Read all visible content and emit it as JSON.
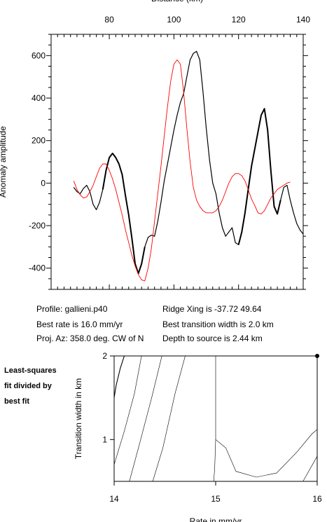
{
  "chart_data": [
    {
      "type": "line",
      "xlabel": "Distance (km)",
      "ylabel": "Anomaly amplitude",
      "xlim": [
        62,
        140
      ],
      "ylim": [
        -500,
        700
      ],
      "x_ticks": [
        80,
        100,
        120,
        140
      ],
      "y_ticks": [
        600,
        400,
        200,
        0,
        -200,
        -400
      ],
      "series": [
        {
          "color": "#000000",
          "style": "observed profile (black; thicker where data are densest)",
          "x": [
            69,
            70,
            71,
            72,
            73,
            74,
            75,
            76,
            77,
            78,
            79,
            80,
            81,
            82,
            83,
            84,
            85,
            86,
            87,
            88,
            89,
            90,
            91,
            92,
            93,
            94,
            95,
            96,
            97,
            98,
            99,
            100,
            101,
            102,
            103,
            104,
            105,
            106,
            107,
            108,
            109,
            110,
            111,
            112,
            113,
            114,
            115,
            116,
            117,
            118,
            119,
            120,
            121,
            122,
            123,
            124,
            125,
            126,
            127,
            128,
            129,
            130,
            131,
            132,
            133,
            134,
            135,
            136,
            137,
            138,
            139,
            140
          ],
          "y": [
            -20,
            -40,
            -50,
            -25,
            -10,
            -40,
            -100,
            -125,
            -90,
            -30,
            60,
            120,
            140,
            120,
            90,
            40,
            -60,
            -150,
            -260,
            -380,
            -425,
            -380,
            -300,
            -255,
            -245,
            -250,
            -180,
            -90,
            10,
            90,
            170,
            250,
            320,
            380,
            420,
            500,
            580,
            610,
            620,
            580,
            430,
            260,
            110,
            0,
            -50,
            -140,
            -210,
            -250,
            -230,
            -210,
            -280,
            -290,
            -230,
            -140,
            -30,
            80,
            160,
            240,
            320,
            350,
            250,
            60,
            -110,
            -145,
            -80,
            -20,
            -10,
            -80,
            -140,
            -190,
            -220,
            -240
          ]
        },
        {
          "color": "#ff0000",
          "style": "model profile (red)",
          "x": [
            69,
            70,
            71,
            72,
            73,
            74,
            75,
            76,
            77,
            78,
            79,
            80,
            81,
            82,
            83,
            84,
            85,
            86,
            87,
            88,
            89,
            90,
            91,
            92,
            93,
            94,
            95,
            96,
            97,
            98,
            99,
            100,
            101,
            102,
            103,
            104,
            105,
            106,
            107,
            108,
            109,
            110,
            111,
            112,
            113,
            114,
            115,
            116,
            117,
            118,
            119,
            120,
            121,
            122,
            123,
            124,
            125,
            126,
            127,
            128,
            129,
            130,
            131,
            132,
            133,
            134,
            135,
            136
          ],
          "y": [
            10,
            -30,
            -55,
            -70,
            -65,
            -40,
            -10,
            30,
            70,
            90,
            90,
            60,
            20,
            -30,
            -90,
            -150,
            -220,
            -280,
            -340,
            -390,
            -430,
            -455,
            -460,
            -400,
            -310,
            -180,
            -50,
            80,
            220,
            360,
            480,
            560,
            580,
            560,
            430,
            260,
            100,
            -20,
            -80,
            -110,
            -130,
            -140,
            -140,
            -140,
            -130,
            -110,
            -80,
            -40,
            0,
            30,
            45,
            45,
            35,
            10,
            -30,
            -75,
            -105,
            -140,
            -145,
            -130,
            -100,
            -70,
            -50,
            -30,
            -20,
            -10,
            0,
            5
          ]
        }
      ]
    },
    {
      "type": "contour",
      "xlabel": "Rate in mm/yr",
      "ylabel": "Transition width in km",
      "xlim": [
        14,
        16
      ],
      "ylim": [
        0.5,
        2
      ],
      "x_ticks": [
        14,
        15,
        16
      ],
      "y_ticks": [
        1,
        2
      ],
      "best_fit_marker": {
        "x": 16.0,
        "y": 2.0
      },
      "contours": [
        {
          "x": [
            14.0,
            14.02,
            14.06,
            14.1
          ],
          "y": [
            1.5,
            1.65,
            1.85,
            2.0
          ]
        },
        {
          "x": [
            14.0,
            14.1,
            14.2,
            14.27
          ],
          "y": [
            0.7,
            1.1,
            1.55,
            2.0
          ]
        },
        {
          "x": [
            14.15,
            14.25,
            14.37,
            14.47
          ],
          "y": [
            0.5,
            0.95,
            1.5,
            2.0
          ]
        },
        {
          "x": [
            14.38,
            14.48,
            14.6,
            14.7
          ],
          "y": [
            0.5,
            0.9,
            1.55,
            2.0
          ]
        },
        {
          "x": [
            14.98,
            14.99,
            15.0,
            15.0,
            15.0
          ],
          "y": [
            0.5,
            0.65,
            1.0,
            1.5,
            2.0
          ]
        },
        {
          "x": [
            15.0,
            15.1,
            15.2,
            15.4,
            15.6,
            15.8,
            15.95,
            16.0
          ],
          "y": [
            1.0,
            0.9,
            0.62,
            0.55,
            0.6,
            0.85,
            1.07,
            1.12
          ]
        },
        {
          "x": [
            15.86,
            16.0
          ],
          "y": [
            0.5,
            0.8
          ]
        }
      ]
    }
  ],
  "info": {
    "profile": "Profile: gallieni.p40",
    "best_rate": "Best rate is 16.0 mm/yr",
    "proj_az": "Proj. Az: 358.0 deg. CW of N",
    "ridge_xing": "Ridge Xing is -37.72 49.64",
    "best_transition": "Best transition width is 2.0 km",
    "depth": "Depth to source is   2.44 km"
  },
  "side_note": [
    "Least-squares",
    "fit divided by",
    "best fit"
  ]
}
